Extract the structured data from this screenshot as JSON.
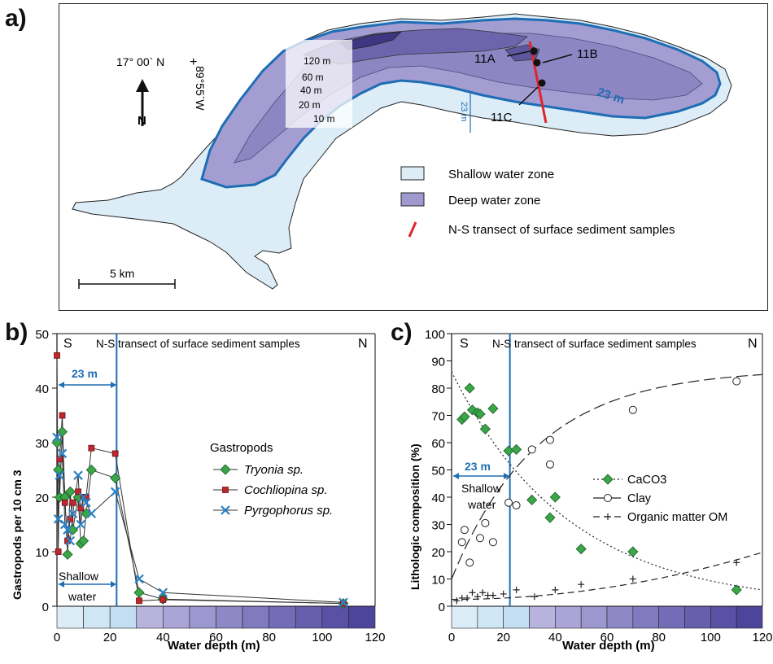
{
  "panels": {
    "a": "a)",
    "b": "b)",
    "c": "c)"
  },
  "map": {
    "coord_lat": "17° 00` N",
    "coord_lon": "89°55`W",
    "north_label": "N",
    "contours": [
      "120 m",
      "60 m",
      "40 m",
      "20 m",
      "10 m"
    ],
    "depth_23": "23 m",
    "depth_23_small": "23 m",
    "sites": [
      "11A",
      "11B",
      "11C"
    ],
    "scale": "5 km",
    "legend": [
      "Shallow water zone",
      "Deep water zone",
      "N-S transect of surface sediment samples"
    ],
    "colors": {
      "shallow": "#dcedf8",
      "deep": "#9f99cf",
      "deep_dark": "#514a97",
      "line23": "#1f6db4",
      "transect": "#e0262a"
    }
  },
  "chart_b": {
    "title": "N-S transect of surface sediment samples",
    "south": "S",
    "north": "N",
    "span_label": "23 m",
    "shallow_label_1": "Shallow",
    "shallow_label_2": "water",
    "legend_title": "Gastropods",
    "xlabel": "Water depth (m)",
    "ylabel": "Gastropods  per 10 cm 3",
    "xticks": [
      "0",
      "20",
      "40",
      "60",
      "80",
      "100",
      "120"
    ],
    "yticks": [
      "0",
      "10",
      "20",
      "30",
      "40",
      "50"
    ]
  },
  "chart_c": {
    "title": "N-S transect of surface sediment samples",
    "south": "S",
    "north": "N",
    "span_label": "23 m",
    "shallow_label_1": "Shallow",
    "shallow_label_2": "water",
    "xlabel": "Water depth (m)",
    "ylabel": "Lithologic composition (%)",
    "xticks": [
      "0",
      "20",
      "40",
      "60",
      "80",
      "100",
      "120"
    ],
    "yticks": [
      "0",
      "10",
      "20",
      "30",
      "40",
      "50",
      "60",
      "70",
      "80",
      "90",
      "100"
    ]
  },
  "chart_data": [
    {
      "type": "line",
      "title": "N-S transect of surface sediment samples",
      "xlabel": "Water depth (m)",
      "ylabel": "Gastropods  per 10 cm 3",
      "xlim": [
        0,
        120
      ],
      "ylim": [
        0,
        50
      ],
      "vline": 22.5,
      "series": [
        {
          "name": "Tryonia sp.",
          "marker": "diamond",
          "color": "#3aa648",
          "x": [
            0,
            0.5,
            1,
            2,
            3,
            4,
            5,
            6,
            8,
            9,
            10,
            11,
            13,
            22,
            31,
            40,
            108
          ],
          "y": [
            30,
            25,
            20,
            32,
            20,
            9.5,
            21,
            14,
            20,
            11.5,
            12,
            17,
            25,
            23.5,
            2.5,
            1.3,
            0.5
          ]
        },
        {
          "name": "Cochliopina sp.",
          "marker": "square",
          "color": "#c0262d",
          "x": [
            0,
            0.5,
            1,
            2,
            3,
            4,
            5,
            6,
            8,
            9,
            10,
            11,
            13,
            22,
            31,
            40,
            108
          ],
          "y": [
            46,
            10,
            27,
            35,
            19,
            12,
            16,
            19,
            21,
            18,
            20,
            20,
            29,
            28,
            1,
            1.2,
            0.5
          ]
        },
        {
          "name": "Pyrgophorus sp.",
          "marker": "x",
          "color": "#2a82c6",
          "x": [
            0,
            0.5,
            1,
            2,
            3,
            4,
            5,
            6,
            8,
            9,
            10,
            11,
            13,
            22,
            31,
            40,
            108
          ],
          "y": [
            31,
            16,
            24,
            28,
            15,
            14,
            12,
            17,
            24,
            15,
            20,
            19,
            17,
            21,
            5,
            2.5,
            0.7
          ]
        }
      ]
    },
    {
      "type": "scatter",
      "title": "N-S transect of surface sediment samples",
      "xlabel": "Water depth (m)",
      "ylabel": "Lithologic composition (%)",
      "xlim": [
        0,
        120
      ],
      "ylim": [
        0,
        100
      ],
      "vline": 22.5,
      "series": [
        {
          "name": "CaCO3",
          "marker": "diamond",
          "color": "#3aa648",
          "trend": "dotted",
          "x": [
            4,
            5,
            7,
            8,
            10,
            11,
            13,
            16,
            22,
            25,
            31,
            38,
            40,
            50,
            70,
            110
          ],
          "y": [
            68.5,
            69.5,
            80,
            72,
            71,
            70.5,
            65,
            72.5,
            57,
            57.5,
            39,
            32.5,
            40,
            21,
            20,
            6
          ]
        },
        {
          "name": "Clay",
          "marker": "circle",
          "color": "#ffffff",
          "trend": "long-dash",
          "x": [
            4,
            5,
            7,
            11,
            13,
            16,
            22,
            25,
            31,
            38,
            38,
            70,
            110
          ],
          "y": [
            23.5,
            28,
            16,
            25,
            30.5,
            23.5,
            38,
            37,
            57.5,
            61,
            52,
            72,
            82.5
          ]
        },
        {
          "name": "Organic matter OM",
          "marker": "plus",
          "color": "#222222",
          "trend": "dash",
          "x": [
            2,
            4,
            6,
            8,
            10,
            12,
            14,
            16,
            20,
            25,
            32,
            40,
            50,
            70,
            110
          ],
          "y": [
            2,
            3,
            3,
            5,
            3.5,
            5,
            4,
            4,
            4.5,
            6,
            3.5,
            6,
            8,
            10,
            16
          ]
        }
      ]
    }
  ]
}
